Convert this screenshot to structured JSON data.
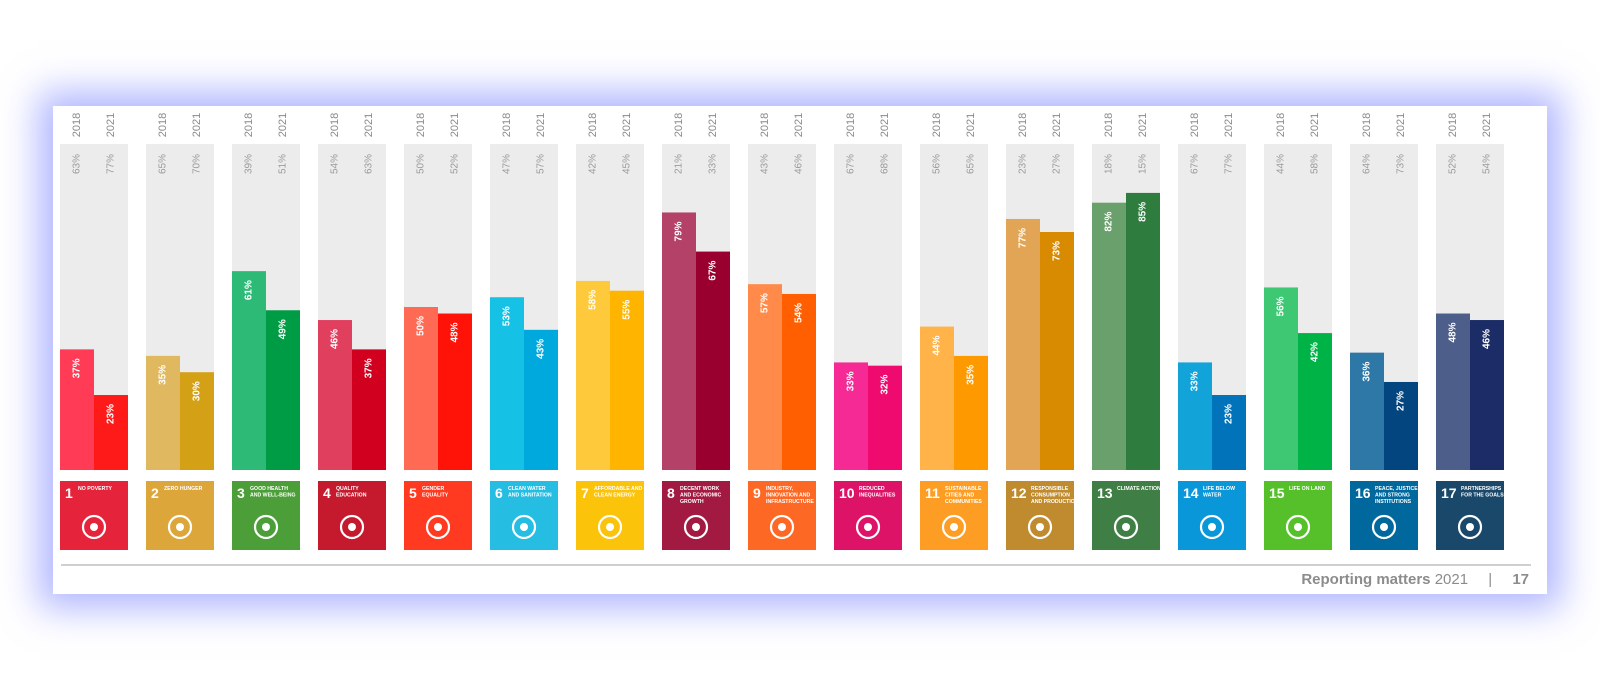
{
  "chart_data": {
    "type": "bar",
    "categories": [
      "NO POVERTY",
      "ZERO HUNGER",
      "GOOD HEALTH AND WELL-BEING",
      "QUALITY EDUCATION",
      "GENDER EQUALITY",
      "CLEAN WATER AND SANITATION",
      "AFFORDABLE AND CLEAN ENERGY",
      "DECENT WORK AND ECONOMIC GROWTH",
      "INDUSTRY, INNOVATION AND INFRASTRUCTURE",
      "REDUCED INEQUALITIES",
      "SUSTAINABLE CITIES AND COMMUNITIES",
      "RESPONSIBLE CONSUMPTION AND PRODUCTION",
      "CLIMATE ACTION",
      "LIFE BELOW WATER",
      "LIFE ON LAND",
      "PEACE, JUSTICE AND STRONG INSTITUTIONS",
      "PARTNERSHIPS FOR THE GOALS"
    ],
    "goal_numbers": [
      "1",
      "2",
      "3",
      "4",
      "5",
      "6",
      "7",
      "8",
      "9",
      "10",
      "11",
      "12",
      "13",
      "14",
      "15",
      "16",
      "17"
    ],
    "series": [
      {
        "name": "2018",
        "values": [
          37,
          35,
          61,
          46,
          50,
          53,
          58,
          79,
          57,
          33,
          44,
          77,
          82,
          33,
          56,
          36,
          48
        ],
        "remainder_labels": [
          "63%",
          "65%",
          "39%",
          "54%",
          "50%",
          "47%",
          "42%",
          "21%",
          "43%",
          "67%",
          "56%",
          "23%",
          "18%",
          "67%",
          "44%",
          "64%",
          "52%"
        ]
      },
      {
        "name": "2021",
        "values": [
          23,
          30,
          49,
          37,
          48,
          43,
          55,
          67,
          54,
          32,
          35,
          73,
          85,
          23,
          42,
          27,
          46
        ],
        "remainder_labels": [
          "77%",
          "70%",
          "51%",
          "63%",
          "52%",
          "57%",
          "45%",
          "33%",
          "46%",
          "68%",
          "65%",
          "27%",
          "15%",
          "77%",
          "58%",
          "73%",
          "54%"
        ]
      }
    ],
    "ylim": [
      0,
      100
    ],
    "goal_colors": [
      "#e5243b",
      "#dda63a",
      "#4c9f38",
      "#c5192d",
      "#ff3a21",
      "#26bde2",
      "#fcc30b",
      "#a21942",
      "#fd6925",
      "#dd1367",
      "#fd9d24",
      "#bf8b2e",
      "#3f7e44",
      "#0a97d9",
      "#56c02b",
      "#00689d",
      "#19486a"
    ],
    "color_2018": [
      "#ff3b55",
      "#e0b860",
      "#2dba77",
      "#e0405e",
      "#ff6a55",
      "#16c1e6",
      "#ffc93c",
      "#b44268",
      "#ff8a4a",
      "#f52a94",
      "#ffb348",
      "#e1a555",
      "#6aa06b",
      "#12a3d9",
      "#3ec874",
      "#2e78a8",
      "#4d5e8b"
    ],
    "color_2021": [
      "#ff1a1a",
      "#d4a015",
      "#009b45",
      "#d2001f",
      "#ff1208",
      "#00a9dd",
      "#ffb400",
      "#99002f",
      "#ff5f00",
      "#ee0a6f",
      "#ff9900",
      "#d88a00",
      "#2e7d3e",
      "#0073bb",
      "#00b347",
      "#03457f",
      "#1b2c66"
    ]
  },
  "footer": {
    "brand": "Reporting matters",
    "year": "2021",
    "separator": "|",
    "page": "17"
  }
}
